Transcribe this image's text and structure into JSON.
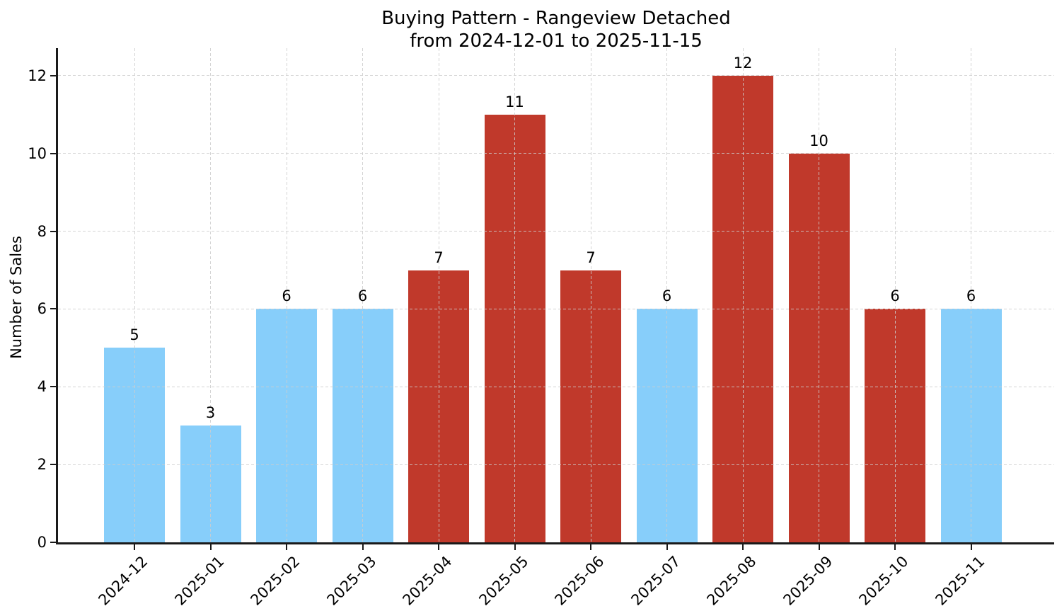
{
  "title": {
    "line1": "Buying Pattern - Rangeview Detached",
    "line2": "from 2024-12-01 to 2025-11-15"
  },
  "chart_data": {
    "type": "bar",
    "title": "Buying Pattern - Rangeview Detached\nfrom 2024-12-01 to 2025-11-15",
    "xlabel": "",
    "ylabel": "Number of Sales",
    "categories": [
      "2024-12",
      "2025-01",
      "2025-02",
      "2025-03",
      "2025-04",
      "2025-05",
      "2025-06",
      "2025-07",
      "2025-08",
      "2025-09",
      "2025-10",
      "2025-11"
    ],
    "values": [
      5,
      3,
      6,
      6,
      7,
      11,
      7,
      6,
      12,
      10,
      6,
      6
    ],
    "bar_colors": [
      "#87CEFA",
      "#87CEFA",
      "#87CEFA",
      "#87CEFA",
      "#C0392B",
      "#C0392B",
      "#C0392B",
      "#87CEFA",
      "#C0392B",
      "#C0392B",
      "#C0392B",
      "#87CEFA"
    ],
    "value_labels": [
      "5",
      "3",
      "6",
      "6",
      "7",
      "11",
      "7",
      "6",
      "12",
      "10",
      "6",
      "6"
    ],
    "yticks": [
      0,
      2,
      4,
      6,
      8,
      10,
      12
    ],
    "ylim": [
      0,
      12.7
    ],
    "grid": true,
    "grid_style": "dashed",
    "legend_position": "none",
    "colors": {
      "bar_low": "#87CEFA",
      "bar_high": "#C0392B",
      "axis": "#1a1a1a",
      "gridline": "#cdcdcd",
      "text": "#000000"
    }
  }
}
